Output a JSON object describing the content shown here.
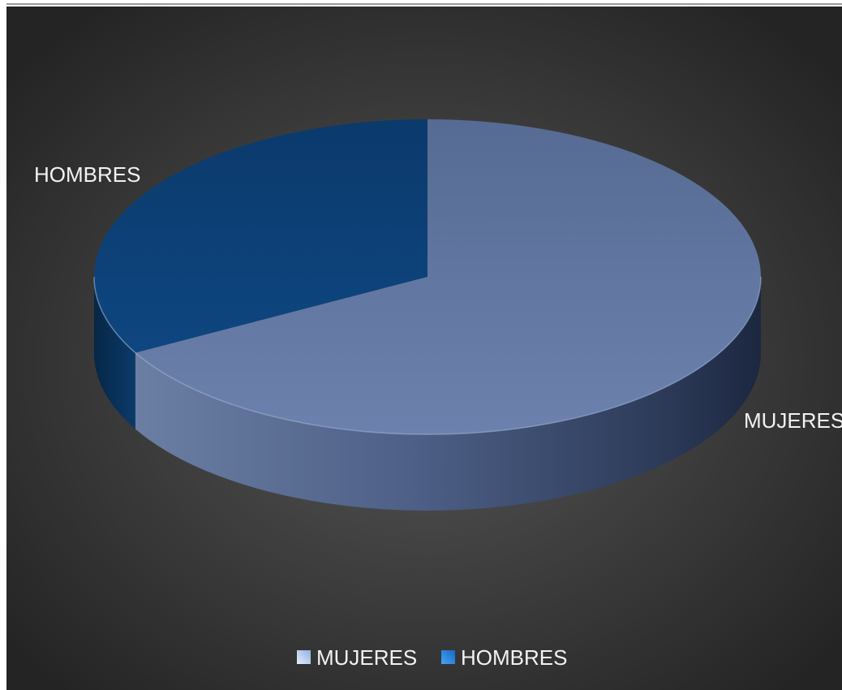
{
  "chart_data": {
    "type": "pie",
    "style": "3d",
    "title": "",
    "categories": [
      "MUJERES",
      "HOMBRES"
    ],
    "values": [
      0.67,
      0.33
    ],
    "colors": [
      "#5a6f9a",
      "#0d4178"
    ],
    "data_labels": [
      "MUJERES",
      "HOMBRES"
    ],
    "legend": {
      "position": "bottom",
      "entries": [
        "MUJERES",
        "HOMBRES"
      ],
      "swatch_colors": [
        "#a9c4ec",
        "#2e86e0"
      ]
    },
    "background": {
      "center": "#555555",
      "edge": "#262626"
    }
  }
}
